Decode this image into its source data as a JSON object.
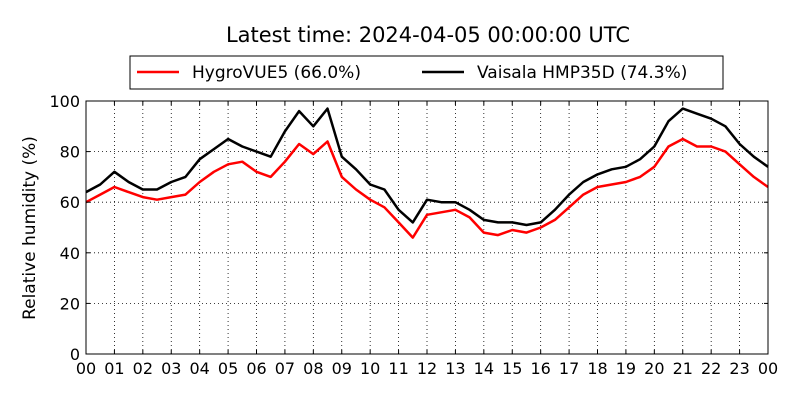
{
  "chart_data": {
    "type": "line",
    "title": "Latest time: 2024-04-05 00:00:00 UTC",
    "xlabel": "",
    "ylabel": "Relative humidity (%)",
    "xlim": [
      0,
      24
    ],
    "ylim": [
      0,
      100
    ],
    "grid": true,
    "legend_position": "top",
    "x_ticks": [
      "00",
      "01",
      "02",
      "03",
      "04",
      "05",
      "06",
      "07",
      "08",
      "09",
      "10",
      "11",
      "12",
      "13",
      "14",
      "15",
      "16",
      "17",
      "18",
      "19",
      "20",
      "21",
      "22",
      "23",
      "00"
    ],
    "y_ticks": [
      "0",
      "20",
      "40",
      "60",
      "80",
      "100"
    ],
    "x": [
      0,
      0.5,
      1,
      1.5,
      2,
      2.5,
      3,
      3.5,
      4,
      4.5,
      5,
      5.5,
      6,
      6.5,
      7,
      7.5,
      8,
      8.5,
      9,
      9.5,
      10,
      10.5,
      11,
      11.5,
      12,
      12.5,
      13,
      13.5,
      14,
      14.5,
      15,
      15.5,
      16,
      16.5,
      17,
      17.5,
      18,
      18.5,
      19,
      19.5,
      20,
      20.5,
      21,
      21.5,
      22,
      22.5,
      23,
      23.5,
      24
    ],
    "series": [
      {
        "name": "HygroVUE5 (66.0%)",
        "color": "#ff0000",
        "values": [
          60,
          63,
          66,
          64,
          62,
          61,
          62,
          63,
          68,
          72,
          75,
          76,
          72,
          70,
          76,
          83,
          79,
          84,
          70,
          65,
          61,
          58,
          52,
          46,
          55,
          56,
          57,
          54,
          48,
          47,
          49,
          48,
          50,
          53,
          58,
          63,
          66,
          67,
          68,
          70,
          74,
          82,
          85,
          82,
          82,
          80,
          75,
          70,
          66
        ]
      },
      {
        "name": "Vaisala HMP35D (74.3%)",
        "color": "#000000",
        "values": [
          64,
          67,
          72,
          68,
          65,
          65,
          68,
          70,
          77,
          81,
          85,
          82,
          80,
          78,
          88,
          96,
          90,
          97,
          78,
          73,
          67,
          65,
          57,
          52,
          61,
          60,
          60,
          57,
          53,
          52,
          52,
          51,
          52,
          57,
          63,
          68,
          71,
          73,
          74,
          77,
          82,
          92,
          97,
          95,
          93,
          90,
          83,
          78,
          74
        ]
      }
    ]
  }
}
